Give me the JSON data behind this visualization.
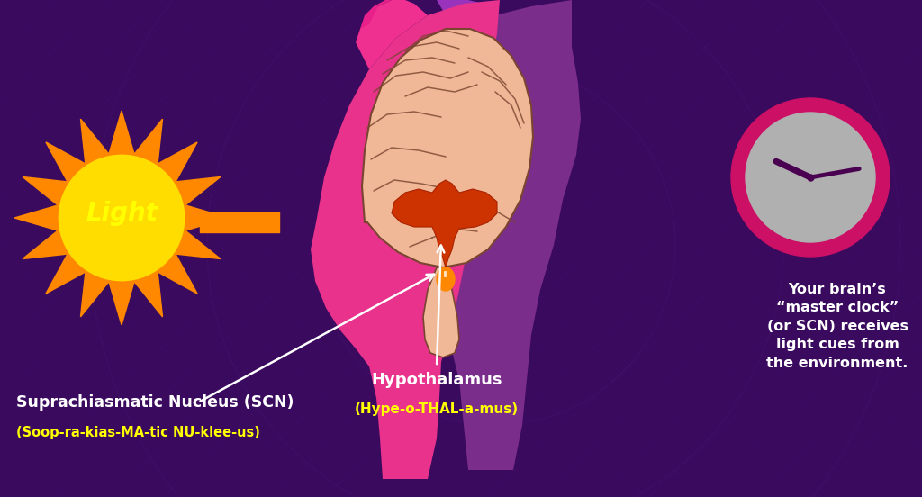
{
  "bg_color": "#3a0a5e",
  "title_text": "Suprachiasmatic Nucleus (SCN)",
  "title_color": "#ffffff",
  "subtitle_text": "(Soop-ra-kias-MA-tic NU-klee-us)",
  "subtitle_color": "#ffff00",
  "hypo_label": "Hypothalamus",
  "hypo_label_color": "#ffffff",
  "hypo_sublabel": "(Hype-o-THAL-a-mus)",
  "hypo_sublabel_color": "#ffff00",
  "light_label": "Light",
  "light_label_color": "#ffff00",
  "desc_text": "Your brain’s\n“master clock”\n(or SCN) receives\nlight cues from\nthe environment.",
  "desc_color": "#ffffff",
  "sun_color_inner": "#ffdd00",
  "sun_color_outer": "#ff8800",
  "arrow_color": "#ff8800",
  "head_fill_front": "#e8328c",
  "head_fill_back": "#7b2d8b",
  "brain_fill": "#f0b897",
  "brain_stroke": "#7a4530",
  "hypothalamus_fill": "#cc3300",
  "scn_fill": "#ff8800",
  "clock_ring_color": "#cc1066",
  "clock_face_color": "#b0b0b0",
  "clock_hand_color": "#4a0050",
  "white_arrow_color": "#ffffff",
  "grid_color": "#6633aa",
  "neck_fill": "#d4a0c0"
}
